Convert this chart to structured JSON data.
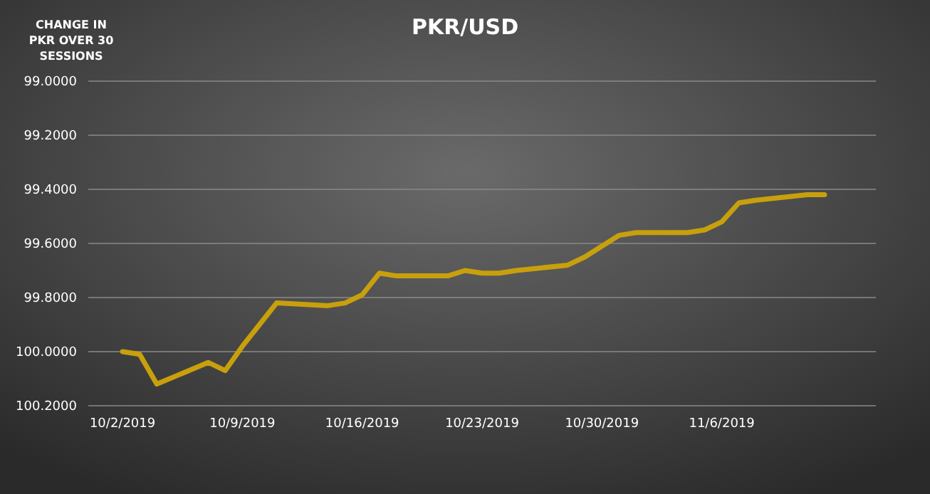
{
  "chart_data": {
    "type": "line",
    "title": "PKR/USD",
    "annotations": [
      "CHANGE IN PKR OVER 30 SESSIONS"
    ],
    "x": [
      "2019-10-02",
      "2019-10-03",
      "2019-10-04",
      "2019-10-07",
      "2019-10-08",
      "2019-10-09",
      "2019-10-10",
      "2019-10-11",
      "2019-10-14",
      "2019-10-15",
      "2019-10-16",
      "2019-10-17",
      "2019-10-18",
      "2019-10-21",
      "2019-10-22",
      "2019-10-23",
      "2019-10-24",
      "2019-10-25",
      "2019-10-28",
      "2019-10-29",
      "2019-10-30",
      "2019-10-31",
      "2019-11-01",
      "2019-11-04",
      "2019-11-05",
      "2019-11-06",
      "2019-11-07",
      "2019-11-08",
      "2019-11-11",
      "2019-11-12"
    ],
    "series": [
      {
        "color": "#c8a00c",
        "values": [
          100.0,
          100.01,
          100.12,
          100.04,
          100.07,
          99.98,
          99.9,
          99.82,
          99.83,
          99.82,
          99.79,
          99.71,
          99.72,
          99.72,
          99.7,
          99.71,
          99.71,
          99.7,
          99.68,
          99.65,
          99.61,
          99.57,
          99.56,
          99.56,
          99.55,
          99.52,
          99.45,
          99.44,
          99.42,
          99.42
        ]
      }
    ],
    "xlim": [
      "2019-09-30",
      "2019-11-15"
    ],
    "xticks": [
      {
        "value": "2019-10-02",
        "label": "10/2/2019"
      },
      {
        "value": "2019-10-09",
        "label": "10/9/2019"
      },
      {
        "value": "2019-10-16",
        "label": "10/16/2019"
      },
      {
        "value": "2019-10-23",
        "label": "10/23/2019"
      },
      {
        "value": "2019-10-30",
        "label": "10/30/2019"
      },
      {
        "value": "2019-11-06",
        "label": "11/6/2019"
      }
    ],
    "ylim": [
      100.2,
      99.0
    ],
    "yticks": [
      {
        "value": 99.0,
        "label": "99.0000"
      },
      {
        "value": 99.2,
        "label": "99.2000"
      },
      {
        "value": 99.4,
        "label": "99.4000"
      },
      {
        "value": 99.6,
        "label": "99.6000"
      },
      {
        "value": 99.8,
        "label": "99.8000"
      },
      {
        "value": 100.0,
        "label": "100.0000"
      },
      {
        "value": 100.2,
        "label": "100.2000"
      }
    ],
    "grid": "y",
    "line_style": "solid",
    "marker": "none"
  }
}
